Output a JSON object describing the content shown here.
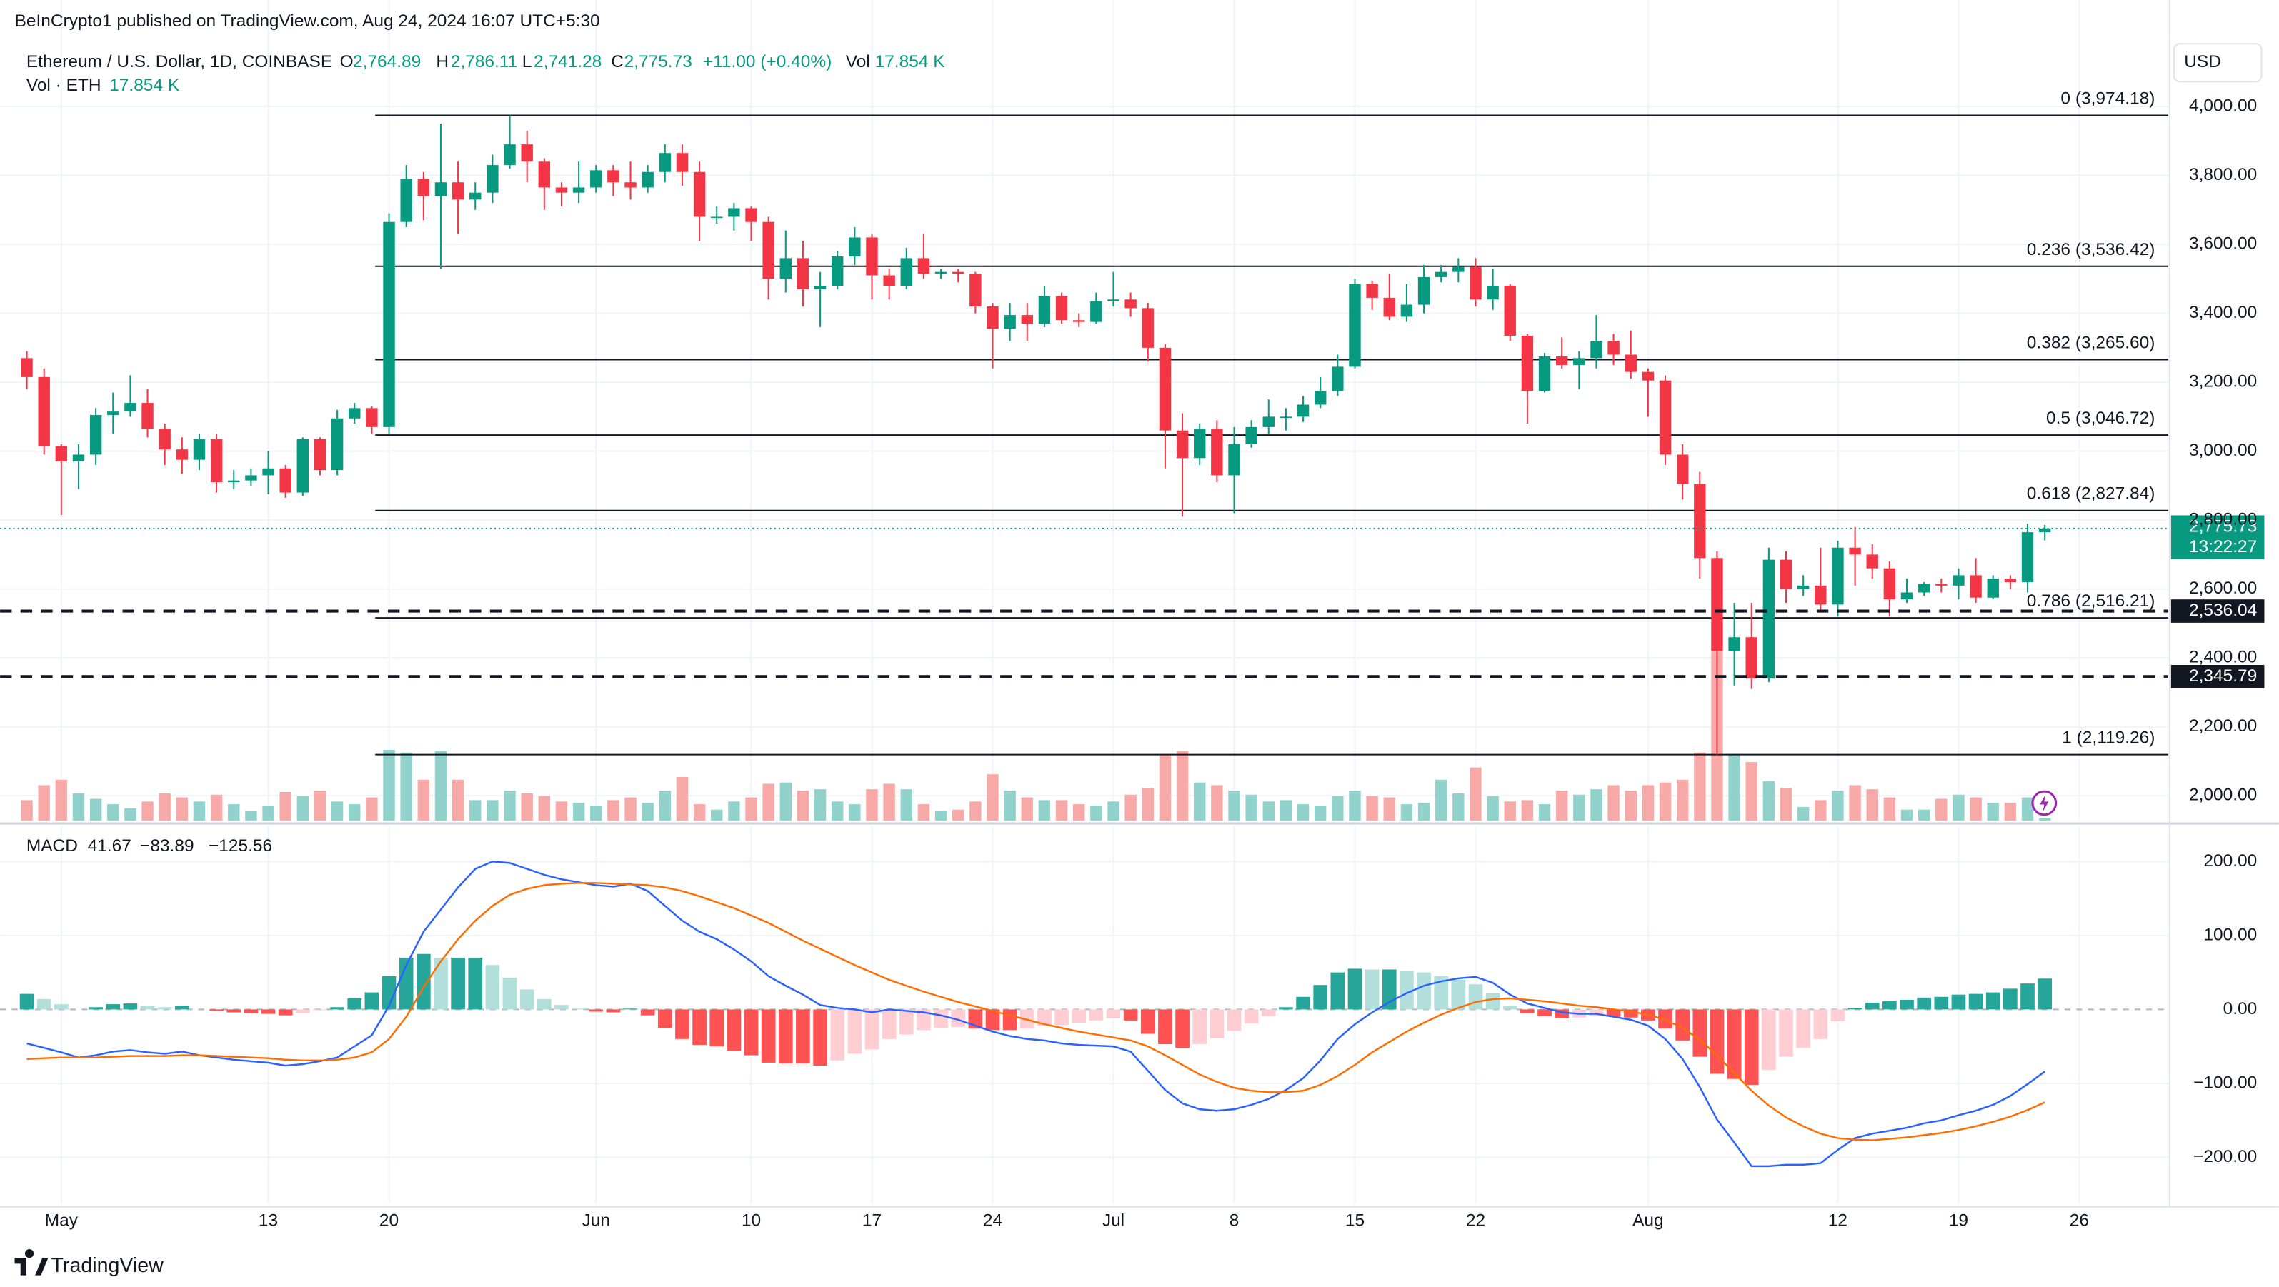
{
  "header": {
    "published": "BeInCrypto1 published on TradingView.com, Aug 24, 2024 16:07 UTC+5:30",
    "symbol": "Ethereum / U.S. Dollar, 1D, COINBASE",
    "ohlc": [
      {
        "key": "O",
        "value": "2,764.89"
      },
      {
        "key": "H",
        "value": "2,786.11"
      },
      {
        "key": "L",
        "value": "2,741.28"
      },
      {
        "key": "C",
        "value": "2,775.73"
      }
    ],
    "change": "+11.00 (+0.40%)",
    "vol_key": "Vol",
    "vol_value": "17.854 K",
    "vol_series": "Vol · ETH",
    "vol_series_value": "17.854 K",
    "currency": "USD"
  },
  "chart_data": [
    {
      "type": "candlestick",
      "xlim": [
        -1.55,
        124.15
      ],
      "xticks": [
        {
          "value": 2,
          "label": "May"
        },
        {
          "value": 14,
          "label": "13"
        },
        {
          "value": 21,
          "label": "20"
        },
        {
          "value": 33,
          "label": "Jun"
        },
        {
          "value": 42,
          "label": "10"
        },
        {
          "value": 49,
          "label": "17"
        },
        {
          "value": 56,
          "label": "24"
        },
        {
          "value": 63,
          "label": "Jul"
        },
        {
          "value": 70,
          "label": "8"
        },
        {
          "value": 77,
          "label": "15"
        },
        {
          "value": 84,
          "label": "22"
        },
        {
          "value": 94,
          "label": "Aug"
        },
        {
          "value": 105,
          "label": "12"
        },
        {
          "value": 112,
          "label": "19"
        },
        {
          "value": 119,
          "label": "26"
        }
      ],
      "ylim": [
        1928,
        4182
      ],
      "yticks": [
        {
          "value": 2000,
          "label": "2,000.00"
        },
        {
          "value": 2200,
          "label": "2,200.00"
        },
        {
          "value": 2400,
          "label": "2,400.00"
        },
        {
          "value": 2600,
          "label": "2,600.00"
        },
        {
          "value": 2800,
          "label": "2,800.00"
        },
        {
          "value": 3000,
          "label": "3,000.00"
        },
        {
          "value": 3200,
          "label": "3,200.00"
        },
        {
          "value": 3400,
          "label": "3,400.00"
        },
        {
          "value": 3600,
          "label": "3,600.00"
        },
        {
          "value": 3800,
          "label": "3,800.00"
        },
        {
          "value": 4000,
          "label": "4,000.00"
        }
      ],
      "grid": true,
      "up_color": "#089981",
      "down_color": "#f23645",
      "vol_up_color": "#92d2cc",
      "vol_down_color": "#f7a9a7",
      "open": [
        3270,
        3215,
        3015,
        2970,
        2990,
        3105,
        3115,
        3140,
        3065,
        3005,
        2975,
        3035,
        2910,
        2915,
        2930,
        2950,
        2880,
        3035,
        2945,
        3095,
        3125,
        3070,
        3665,
        3790,
        3740,
        3780,
        3730,
        3750,
        3830,
        3890,
        3840,
        3765,
        3750,
        3765,
        3815,
        3780,
        3765,
        3810,
        3865,
        3810,
        3680,
        3680,
        3705,
        3665,
        3500,
        3560,
        3470,
        3480,
        3565,
        3620,
        3510,
        3480,
        3560,
        3515,
        3520,
        3515,
        3420,
        3355,
        3395,
        3370,
        3450,
        3380,
        3375,
        3435,
        3440,
        3415,
        3300,
        3060,
        2980,
        3065,
        2930,
        3020,
        3070,
        3100,
        3100,
        3135,
        3175,
        3245,
        3485,
        3445,
        3390,
        3425,
        3505,
        3520,
        3535,
        3440,
        3480,
        3335,
        3175,
        3275,
        3250,
        3270,
        3320,
        3280,
        3230,
        3205,
        2990,
        2905,
        2690,
        2420,
        2460,
        2340,
        2685,
        2600,
        2610,
        2555,
        2720,
        2700,
        2660,
        2570,
        2590,
        2615,
        2610,
        2640,
        2575,
        2630,
        2620,
        2764.89
      ],
      "high": [
        3290,
        3240,
        3020,
        3020,
        3125,
        3170,
        3220,
        3180,
        3080,
        3040,
        3050,
        3050,
        2945,
        2950,
        3000,
        2960,
        3040,
        3040,
        3120,
        3140,
        3130,
        3690,
        3830,
        3810,
        3950,
        3840,
        3780,
        3860,
        3974.18,
        3930,
        3850,
        3780,
        3840,
        3830,
        3830,
        3840,
        3830,
        3890,
        3890,
        3840,
        3710,
        3720,
        3710,
        3680,
        3640,
        3610,
        3520,
        3580,
        3650,
        3630,
        3530,
        3590,
        3630,
        3530,
        3530,
        3520,
        3430,
        3430,
        3430,
        3480,
        3460,
        3400,
        3460,
        3520,
        3460,
        3430,
        3310,
        3110,
        3080,
        3090,
        3070,
        3090,
        3150,
        3125,
        3160,
        3215,
        3280,
        3500,
        3495,
        3515,
        3485,
        3540,
        3540,
        3560,
        3560,
        3530,
        3485,
        3340,
        3285,
        3330,
        3290,
        3395,
        3340,
        3350,
        3240,
        3220,
        3020,
        2940,
        2710,
        2560,
        2560,
        2720,
        2710,
        2640,
        2720,
        2740,
        2780,
        2730,
        2680,
        2630,
        2620,
        2630,
        2660,
        2690,
        2640,
        2640,
        2790,
        2786.11
      ],
      "low": [
        3180,
        2990,
        2815,
        2890,
        2960,
        3050,
        3100,
        3040,
        2960,
        2935,
        2945,
        2880,
        2890,
        2900,
        2875,
        2865,
        2870,
        2930,
        2930,
        3080,
        3050,
        3050,
        3650,
        3670,
        3530,
        3630,
        3700,
        3720,
        3820,
        3780,
        3700,
        3710,
        3720,
        3750,
        3740,
        3730,
        3750,
        3780,
        3770,
        3610,
        3660,
        3640,
        3610,
        3440,
        3460,
        3420,
        3360,
        3470,
        3540,
        3440,
        3440,
        3470,
        3500,
        3500,
        3490,
        3400,
        3240,
        3320,
        3320,
        3360,
        3370,
        3360,
        3370,
        3420,
        3390,
        3260,
        2950,
        2810,
        2960,
        2910,
        2820,
        3010,
        3050,
        3060,
        3085,
        3125,
        3160,
        3240,
        3410,
        3380,
        3375,
        3400,
        3490,
        3490,
        3420,
        3410,
        3320,
        3080,
        3170,
        3240,
        3180,
        3240,
        3250,
        3210,
        3100,
        2960,
        2860,
        2630,
        2119.26,
        2320,
        2310,
        2330,
        2560,
        2580,
        2540,
        2520,
        2610,
        2630,
        2520,
        2560,
        2580,
        2590,
        2570,
        2560,
        2570,
        2600,
        2590,
        2741.28
      ],
      "close": [
        3215,
        3015,
        2970,
        2990,
        3105,
        3115,
        3140,
        3065,
        3005,
        2975,
        3035,
        2910,
        2915,
        2930,
        2950,
        2880,
        3035,
        2945,
        3095,
        3125,
        3070,
        3665,
        3790,
        3740,
        3780,
        3730,
        3750,
        3830,
        3890,
        3840,
        3765,
        3750,
        3765,
        3815,
        3780,
        3765,
        3810,
        3865,
        3810,
        3680,
        3680,
        3705,
        3665,
        3500,
        3560,
        3470,
        3480,
        3565,
        3620,
        3510,
        3480,
        3560,
        3515,
        3520,
        3515,
        3420,
        3355,
        3395,
        3370,
        3450,
        3380,
        3375,
        3435,
        3440,
        3415,
        3300,
        3060,
        2980,
        3065,
        2930,
        3020,
        3070,
        3100,
        3100,
        3135,
        3175,
        3245,
        3485,
        3445,
        3390,
        3425,
        3505,
        3520,
        3535,
        3440,
        3480,
        3335,
        3175,
        3275,
        3250,
        3270,
        3320,
        3280,
        3230,
        3205,
        2990,
        2905,
        2690,
        2420,
        2460,
        2340,
        2685,
        2600,
        2610,
        2555,
        2720,
        2700,
        2660,
        2570,
        2590,
        2615,
        2610,
        2640,
        2575,
        2630,
        2620,
        2764.89,
        2775.73
      ],
      "volume": [
        150,
        260,
        300,
        200,
        160,
        120,
        90,
        140,
        200,
        170,
        140,
        190,
        120,
        70,
        110,
        210,
        180,
        220,
        140,
        120,
        170,
        520,
        500,
        300,
        510,
        300,
        150,
        150,
        220,
        200,
        180,
        140,
        130,
        110,
        150,
        170,
        130,
        220,
        320,
        120,
        80,
        140,
        170,
        270,
        280,
        220,
        230,
        140,
        120,
        230,
        270,
        230,
        120,
        70,
        80,
        140,
        340,
        220,
        170,
        150,
        150,
        120,
        110,
        140,
        190,
        240,
        490,
        510,
        280,
        260,
        220,
        190,
        140,
        150,
        120,
        110,
        180,
        220,
        180,
        170,
        120,
        130,
        300,
        200,
        390,
        180,
        140,
        150,
        120,
        220,
        190,
        230,
        260,
        220,
        260,
        280,
        300,
        500,
        1243,
        490,
        430,
        290,
        240,
        100,
        150,
        220,
        260,
        230,
        170,
        80,
        80,
        160,
        190,
        170,
        130,
        130,
        170,
        17.854
      ],
      "vol_ylim": [
        0,
        1500
      ],
      "fib_levels": [
        {
          "value": 3974.18,
          "label": "0 (3,974.18)"
        },
        {
          "value": 3536.42,
          "label": "0.236 (3,536.42)"
        },
        {
          "value": 3265.6,
          "label": "0.382 (3,265.60)"
        },
        {
          "value": 3046.72,
          "label": "0.5 (3,046.72)"
        },
        {
          "value": 2827.84,
          "label": "0.618 (2,827.84)"
        },
        {
          "value": 2516.21,
          "label": "0.786 (2,516.21)"
        },
        {
          "value": 2119.26,
          "label": "1 (2,119.26)"
        }
      ],
      "levels": [
        {
          "value": 2536.04,
          "label": "2,536.04"
        },
        {
          "value": 2345.79,
          "label": "2,345.79"
        }
      ],
      "last_price": {
        "value": 2775.73,
        "label": "2,775.73"
      },
      "countdown": "13:22:27"
    },
    {
      "type": "macd",
      "title": "MACD",
      "value_labels": [
        "41.67",
        "−83.89",
        "−125.56"
      ],
      "ylim": [
        -263,
        247.5
      ],
      "yticks": [
        {
          "value": -200,
          "label": "−200.00"
        },
        {
          "value": -100,
          "label": "−100.00"
        },
        {
          "value": 0,
          "label": "0.00"
        },
        {
          "value": 100,
          "label": "100.00"
        },
        {
          "value": 200,
          "label": "200.00"
        }
      ],
      "grid": true,
      "hist_colors": {
        "pos_up": "#26a69a",
        "pos_down": "#b2dfdb",
        "neg_down": "#ff5252",
        "neg_up": "#ffcdd2"
      },
      "macd_color": "#2962ff",
      "signal_color": "#ff6d00",
      "hist": [
        21,
        14,
        7,
        0,
        3,
        7,
        8,
        5,
        3,
        5,
        0,
        -2,
        -4,
        -5,
        -6,
        -8,
        -5,
        -1,
        3,
        15,
        23,
        45,
        70,
        75,
        70,
        70,
        70,
        60,
        43,
        27,
        14,
        6,
        1,
        -3,
        -4,
        1,
        -8,
        -25,
        -40,
        -48,
        -50,
        -56,
        -62,
        -72,
        -73,
        -73,
        -76,
        -69,
        -60,
        -54,
        -40,
        -34,
        -28,
        -25,
        -24,
        -26,
        -28,
        -28,
        -26,
        -22,
        -21,
        -18,
        -15,
        -12,
        -15,
        -33,
        -47,
        -52,
        -47,
        -39,
        -29,
        -19,
        -9,
        3,
        17,
        33,
        50,
        55,
        54,
        54,
        52,
        50,
        45,
        40,
        34,
        22,
        5,
        -5,
        -9,
        -12,
        -11,
        -9,
        -10,
        -11,
        -15,
        -26,
        -42,
        -64,
        -87,
        -94,
        -102,
        -82,
        -64,
        -52,
        -40,
        -16,
        2,
        9,
        11,
        13,
        16,
        17,
        20,
        21,
        23,
        28,
        35,
        41.67
      ],
      "macd": [
        -46,
        -52,
        -58,
        -65,
        -62,
        -57,
        -55,
        -58,
        -60,
        -57,
        -62,
        -65,
        -68,
        -70,
        -72,
        -76,
        -74,
        -70,
        -65,
        -50,
        -35,
        5,
        60,
        105,
        135,
        165,
        190,
        200,
        198,
        190,
        182,
        176,
        172,
        168,
        166,
        170,
        160,
        140,
        120,
        105,
        95,
        81,
        65,
        45,
        32,
        20,
        6,
        2,
        0,
        -4,
        0,
        -2,
        -4,
        -8,
        -14,
        -22,
        -30,
        -36,
        -40,
        -42,
        -46,
        -48,
        -49,
        -50,
        -57,
        -83,
        -109,
        -127,
        -135,
        -137,
        -135,
        -129,
        -121,
        -109,
        -93,
        -69,
        -40,
        -20,
        -4,
        10,
        22,
        32,
        38,
        42,
        44,
        36,
        20,
        8,
        2,
        -4,
        -6,
        -6,
        -10,
        -14,
        -22,
        -40,
        -67,
        -105,
        -149,
        -180,
        -212,
        -212,
        -210,
        -210,
        -208,
        -190,
        -174,
        -168,
        -164,
        -160,
        -154,
        -150,
        -143,
        -137,
        -129,
        -117,
        -101,
        -83.89
      ],
      "signal": [
        -67,
        -66,
        -65,
        -65,
        -65,
        -64,
        -63,
        -63,
        -63,
        -62,
        -62,
        -63,
        -64,
        -65,
        -66,
        -68,
        -69,
        -69,
        -68,
        -65,
        -58,
        -40,
        -10,
        30,
        65,
        95,
        120,
        140,
        155,
        163,
        168,
        170,
        171,
        171,
        170,
        169,
        168,
        165,
        160,
        153,
        145,
        137,
        127,
        117,
        105,
        93,
        82,
        71,
        60,
        50,
        40,
        32,
        24,
        17,
        10,
        4,
        -2,
        -8,
        -14,
        -20,
        -25,
        -30,
        -34,
        -38,
        -42,
        -50,
        -62,
        -75,
        -88,
        -98,
        -106,
        -110,
        -112,
        -112,
        -110,
        -102,
        -90,
        -75,
        -58,
        -44,
        -30,
        -18,
        -7,
        2,
        10,
        14,
        15,
        13,
        11,
        8,
        5,
        3,
        0,
        -3,
        -7,
        -14,
        -25,
        -41,
        -62,
        -86,
        -110,
        -130,
        -146,
        -158,
        -168,
        -174,
        -176,
        -177,
        -175,
        -173,
        -170,
        -167,
        -163,
        -158,
        -152,
        -145,
        -136,
        -125.56
      ]
    }
  ],
  "footer": {
    "brand": "TradingView"
  }
}
